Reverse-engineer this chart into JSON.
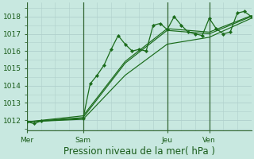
{
  "background_color": "#c8e8e0",
  "grid_major_color": "#b0d0cc",
  "grid_minor_color": "#c0dcd8",
  "line_color": "#1a6b1a",
  "title": "Pression niveau de la mer( hPa )",
  "ylabel_ticks": [
    1012,
    1013,
    1014,
    1015,
    1016,
    1017,
    1018
  ],
  "day_labels": [
    "Mer",
    "Sam",
    "Jeu",
    "Ven"
  ],
  "day_positions": [
    0,
    8,
    20,
    26
  ],
  "ylim": [
    1011.4,
    1018.8
  ],
  "xlim": [
    0,
    32
  ],
  "series1_x": [
    0,
    1,
    2,
    8,
    9,
    10,
    11,
    12,
    13,
    14,
    15,
    16,
    17,
    18,
    19,
    20,
    21,
    22,
    23,
    24,
    25,
    26,
    27,
    28,
    29,
    30,
    31,
    32
  ],
  "series1_y": [
    1011.9,
    1011.8,
    1011.95,
    1012.1,
    1014.1,
    1014.6,
    1015.2,
    1016.1,
    1016.9,
    1016.4,
    1016.0,
    1016.1,
    1016.0,
    1017.5,
    1017.6,
    1017.25,
    1018.0,
    1017.5,
    1017.1,
    1017.0,
    1016.9,
    1017.9,
    1017.3,
    1017.0,
    1017.1,
    1018.2,
    1018.3,
    1018.0
  ],
  "series2_x": [
    0,
    8,
    14,
    20,
    26,
    32
  ],
  "series2_y": [
    1011.9,
    1012.15,
    1015.3,
    1017.2,
    1017.0,
    1018.0
  ],
  "series3_x": [
    0,
    8,
    14,
    20,
    26,
    32
  ],
  "series3_y": [
    1011.9,
    1012.25,
    1015.4,
    1017.3,
    1017.1,
    1018.05
  ],
  "series4_x": [
    0,
    8,
    14,
    20,
    26,
    32
  ],
  "series4_y": [
    1011.9,
    1012.05,
    1014.6,
    1016.4,
    1016.8,
    1017.9
  ],
  "vline_color": "#336633",
  "tick_label_color": "#1a5c1a",
  "xlabel_color": "#1a5c1a",
  "xlabel_fontsize": 8.5,
  "tick_fontsize": 6.5,
  "marker": "D",
  "markersize": 2.2,
  "linewidth_main": 0.9,
  "linewidth_trend": 0.85
}
